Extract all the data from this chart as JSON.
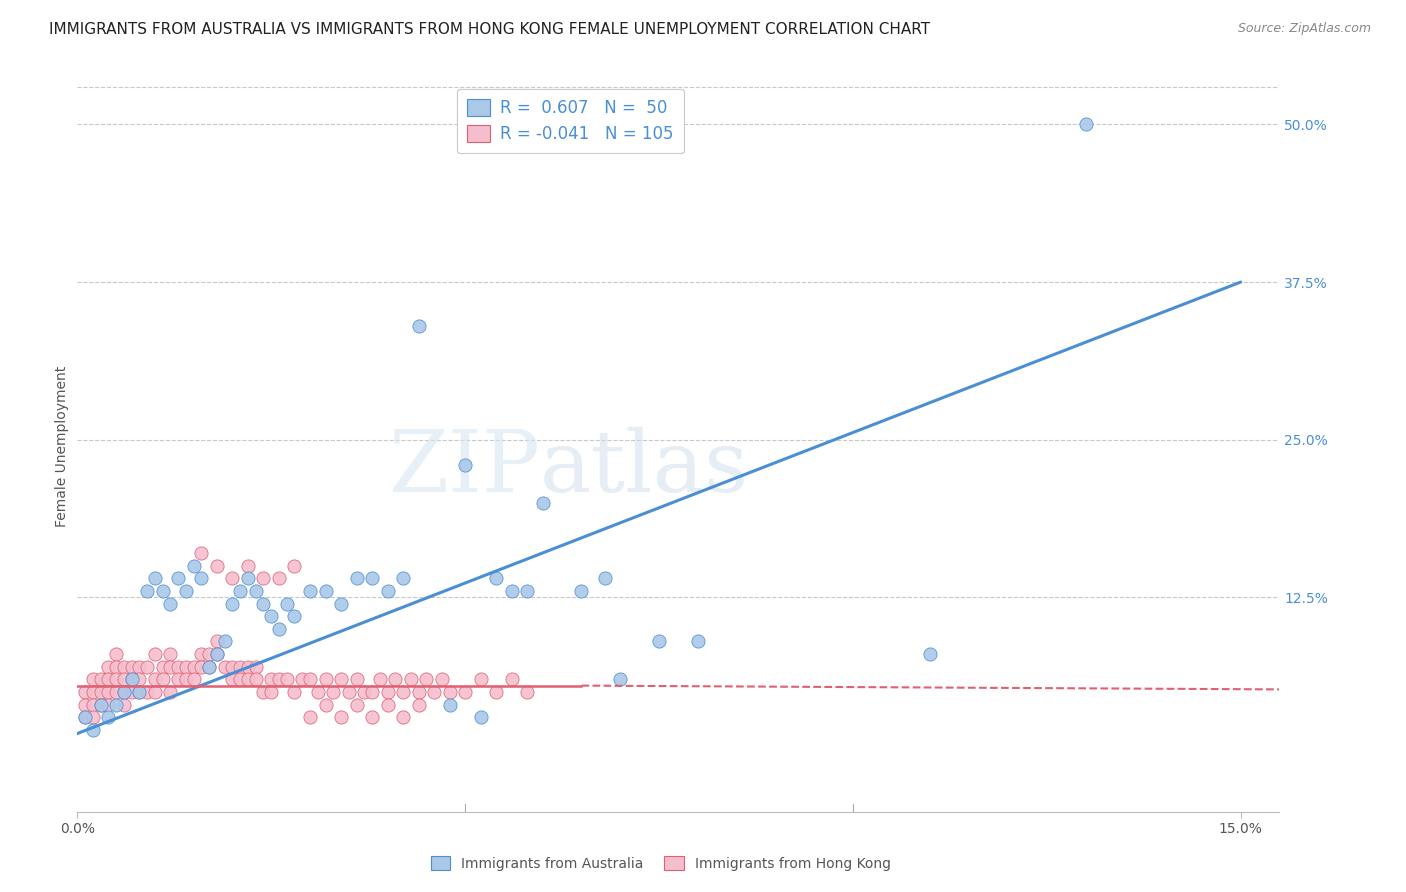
{
  "title": "IMMIGRANTS FROM AUSTRALIA VS IMMIGRANTS FROM HONG KONG FEMALE UNEMPLOYMENT CORRELATION CHART",
  "source": "Source: ZipAtlas.com",
  "ylabel": "Female Unemployment",
  "xlim": [
    0.0,
    0.155
  ],
  "ylim": [
    -0.045,
    0.535
  ],
  "australia_color": "#aac8e8",
  "hongkong_color": "#f5bece",
  "australia_line_color": "#4a8fd4",
  "hongkong_line_color": "#e06070",
  "legend_label_australia": "Immigrants from Australia",
  "legend_label_hongkong": "Immigrants from Hong Kong",
  "R_australia": 0.607,
  "N_australia": 50,
  "R_hongkong": -0.041,
  "N_hongkong": 105,
  "aus_line_x0": 0.0,
  "aus_line_y0": 0.017,
  "aus_line_x1": 0.15,
  "aus_line_y1": 0.375,
  "hk_line_solid_x0": 0.0,
  "hk_line_solid_y0": 0.055,
  "hk_line_solid_x1": 0.065,
  "hk_line_solid_y1": 0.055,
  "hk_line_dash_x0": 0.065,
  "hk_line_dash_y0": 0.055,
  "hk_line_dash_x1": 0.155,
  "hk_line_dash_y1": 0.052,
  "aus_scatter_x": [
    0.001,
    0.002,
    0.003,
    0.004,
    0.005,
    0.006,
    0.007,
    0.008,
    0.009,
    0.01,
    0.011,
    0.012,
    0.013,
    0.014,
    0.015,
    0.016,
    0.017,
    0.018,
    0.019,
    0.02,
    0.021,
    0.022,
    0.023,
    0.024,
    0.025,
    0.026,
    0.027,
    0.028,
    0.03,
    0.032,
    0.034,
    0.036,
    0.038,
    0.04,
    0.042,
    0.044,
    0.048,
    0.05,
    0.052,
    0.054,
    0.056,
    0.058,
    0.06,
    0.065,
    0.068,
    0.07,
    0.075,
    0.08,
    0.11,
    0.13
  ],
  "aus_scatter_y": [
    0.03,
    0.02,
    0.04,
    0.03,
    0.04,
    0.05,
    0.06,
    0.05,
    0.13,
    0.14,
    0.13,
    0.12,
    0.14,
    0.13,
    0.15,
    0.14,
    0.07,
    0.08,
    0.09,
    0.12,
    0.13,
    0.14,
    0.13,
    0.12,
    0.11,
    0.1,
    0.12,
    0.11,
    0.13,
    0.13,
    0.12,
    0.14,
    0.14,
    0.13,
    0.14,
    0.34,
    0.04,
    0.23,
    0.03,
    0.14,
    0.13,
    0.13,
    0.2,
    0.13,
    0.14,
    0.06,
    0.09,
    0.09,
    0.08,
    0.5
  ],
  "hk_scatter_x": [
    0.001,
    0.001,
    0.001,
    0.002,
    0.002,
    0.002,
    0.002,
    0.003,
    0.003,
    0.003,
    0.004,
    0.004,
    0.004,
    0.004,
    0.005,
    0.005,
    0.005,
    0.005,
    0.006,
    0.006,
    0.006,
    0.006,
    0.007,
    0.007,
    0.007,
    0.008,
    0.008,
    0.008,
    0.009,
    0.009,
    0.01,
    0.01,
    0.01,
    0.011,
    0.011,
    0.012,
    0.012,
    0.012,
    0.013,
    0.013,
    0.014,
    0.014,
    0.015,
    0.015,
    0.016,
    0.016,
    0.017,
    0.017,
    0.018,
    0.018,
    0.019,
    0.02,
    0.02,
    0.021,
    0.021,
    0.022,
    0.022,
    0.023,
    0.023,
    0.024,
    0.025,
    0.025,
    0.026,
    0.027,
    0.028,
    0.029,
    0.03,
    0.031,
    0.032,
    0.033,
    0.034,
    0.035,
    0.036,
    0.037,
    0.038,
    0.039,
    0.04,
    0.041,
    0.042,
    0.043,
    0.044,
    0.045,
    0.046,
    0.047,
    0.048,
    0.05,
    0.052,
    0.054,
    0.056,
    0.058,
    0.016,
    0.018,
    0.02,
    0.022,
    0.024,
    0.026,
    0.028,
    0.03,
    0.032,
    0.034,
    0.036,
    0.038,
    0.04,
    0.042,
    0.044
  ],
  "hk_scatter_y": [
    0.05,
    0.04,
    0.03,
    0.06,
    0.05,
    0.04,
    0.03,
    0.06,
    0.05,
    0.04,
    0.07,
    0.06,
    0.05,
    0.04,
    0.08,
    0.07,
    0.06,
    0.05,
    0.07,
    0.06,
    0.05,
    0.04,
    0.07,
    0.06,
    0.05,
    0.07,
    0.06,
    0.05,
    0.07,
    0.05,
    0.08,
    0.06,
    0.05,
    0.07,
    0.06,
    0.08,
    0.07,
    0.05,
    0.07,
    0.06,
    0.07,
    0.06,
    0.07,
    0.06,
    0.08,
    0.07,
    0.08,
    0.07,
    0.09,
    0.08,
    0.07,
    0.07,
    0.06,
    0.07,
    0.06,
    0.07,
    0.06,
    0.07,
    0.06,
    0.05,
    0.06,
    0.05,
    0.06,
    0.06,
    0.05,
    0.06,
    0.06,
    0.05,
    0.06,
    0.05,
    0.06,
    0.05,
    0.06,
    0.05,
    0.05,
    0.06,
    0.05,
    0.06,
    0.05,
    0.06,
    0.05,
    0.06,
    0.05,
    0.06,
    0.05,
    0.05,
    0.06,
    0.05,
    0.06,
    0.05,
    0.16,
    0.15,
    0.14,
    0.15,
    0.14,
    0.14,
    0.15,
    0.03,
    0.04,
    0.03,
    0.04,
    0.03,
    0.04,
    0.03,
    0.04
  ],
  "watermark_zip": "ZIP",
  "watermark_atlas": "atlas",
  "background_color": "#ffffff",
  "grid_color": "#c8c8c8",
  "title_fontsize": 11,
  "axis_label_fontsize": 10,
  "tick_fontsize": 10,
  "legend_fontsize": 12,
  "right_tick_color": "#4a8fd4"
}
